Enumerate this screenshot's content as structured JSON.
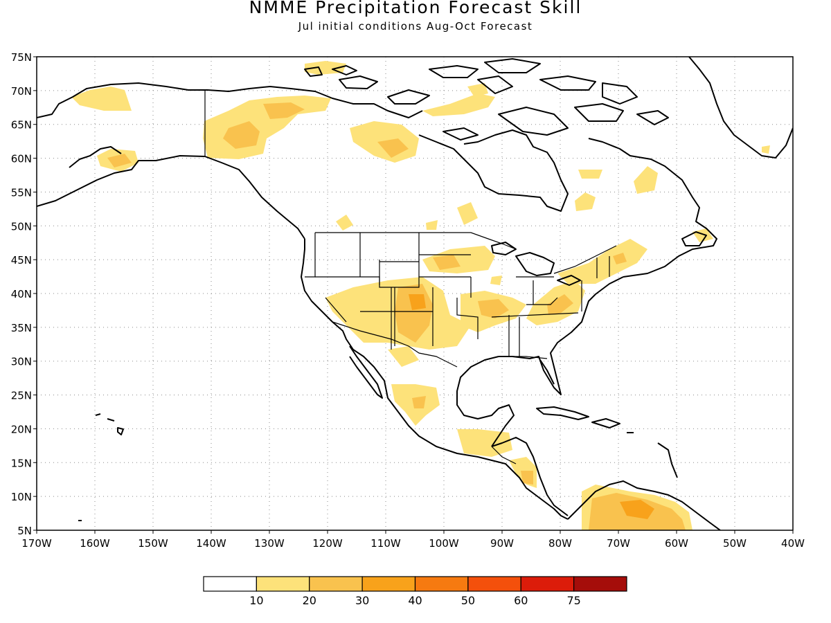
{
  "header": {
    "title": "NMME Precipitation Forecast Skill",
    "subtitle": "Jul initial conditions   Aug-Oct Forecast"
  },
  "map": {
    "lat_labels": [
      "75N",
      "70N",
      "65N",
      "60N",
      "55N",
      "50N",
      "45N",
      "40N",
      "35N",
      "30N",
      "25N",
      "20N",
      "15N",
      "10N",
      "5N"
    ],
    "lon_labels": [
      "170W",
      "160W",
      "150W",
      "140W",
      "130W",
      "120W",
      "110W",
      "100W",
      "90W",
      "80W",
      "70W",
      "60W",
      "50W",
      "40W"
    ],
    "lat_range": [
      5,
      75
    ],
    "lon_range": [
      -170,
      -40
    ],
    "grid": "dotted"
  },
  "colorbar": {
    "colors": [
      "#ffffff",
      "#fde27a",
      "#f9c24e",
      "#f8a21b",
      "#f67a10",
      "#f4500c",
      "#dc1c0a",
      "#a50d0a"
    ],
    "labels": [
      "10",
      "20",
      "30",
      "40",
      "50",
      "60",
      "75"
    ]
  }
}
